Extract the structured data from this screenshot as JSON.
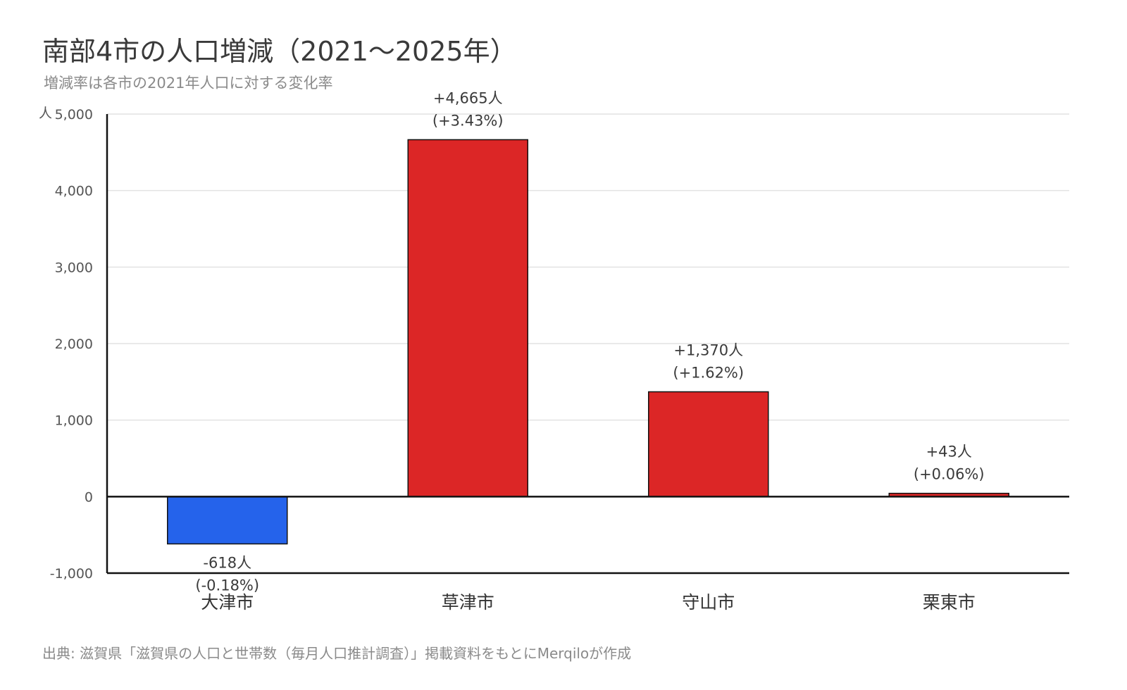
{
  "title": "南部4市の人口増減（2021〜2025年）",
  "subtitle": "増減率は各市の2021年人口に対する変化率",
  "source": "出典: 滋賀県「滋賀県の人口と世帯数（毎月人口推計調査）」掲載資料をもとにMerqiloが作成",
  "colors": {
    "increase": "#dc2626",
    "decrease": "#2563eb",
    "grid": "#e2e2e2",
    "axis": "#111111"
  },
  "chart_data": {
    "type": "bar",
    "title": "南部4市の人口増減（2021〜2025年）",
    "subtitle": "増減率は各市の2021年人口に対する変化率",
    "xlabel": "",
    "ylabel": "人",
    "ylim": [
      -1000,
      5000
    ],
    "yticks": [
      -1000,
      0,
      1000,
      2000,
      3000,
      4000,
      5000
    ],
    "ytick_labels": [
      "-1,000",
      "0",
      "1,000",
      "2,000",
      "3,000",
      "4,000",
      "5,000"
    ],
    "grid": true,
    "categories": [
      "大津市",
      "草津市",
      "守山市",
      "栗東市"
    ],
    "values": [
      -618,
      4665,
      1370,
      43
    ],
    "value_labels": [
      "-618人",
      "+4,665人",
      "+1,370人",
      "+43人"
    ],
    "rate_labels": [
      "(-0.18%)",
      "(+3.43%)",
      "(+1.62%)",
      "(+0.06%)"
    ]
  }
}
